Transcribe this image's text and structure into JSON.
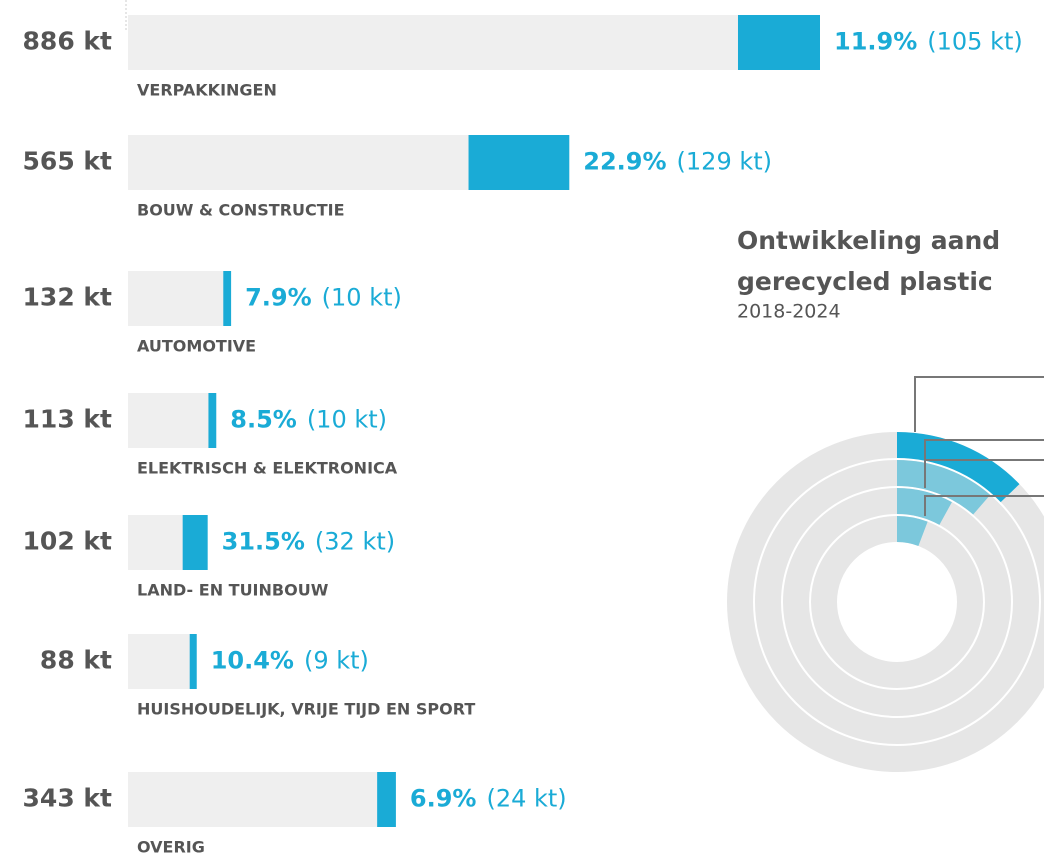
{
  "chart_data": [
    {
      "type": "bar",
      "categories": [
        "VERPAKKINGEN",
        "BOUW & CONSTRUCTIE",
        "AUTOMOTIVE",
        "ELEKTRISCH & ELEKTRONICA",
        "LAND- EN TUINBOUW",
        "HUISHOUDELIJK, VRIJE TIJD EN SPORT",
        "OVERIG"
      ],
      "values": [
        886,
        565,
        132,
        113,
        102,
        88,
        343
      ],
      "value_labels": [
        "886 kt",
        "565 kt",
        "132 kt",
        "113 kt",
        "102 kt",
        "88 kt",
        "343 kt"
      ],
      "recycled": [
        105,
        129,
        10,
        10,
        32,
        9,
        24
      ],
      "recycled_labels": [
        "(105 kt)",
        "(129 kt)",
        "(10 kt)",
        "(10 kt)",
        "(32 kt)",
        "(9 kt)",
        "(24 kt)"
      ],
      "share": [
        11.9,
        22.9,
        7.9,
        8.5,
        31.5,
        10.4,
        6.9
      ],
      "share_labels": [
        "11.9%",
        "22.9%",
        "7.9%",
        "8.5%",
        "31.5%",
        "10.4%",
        "6.9%"
      ],
      "color": "#1aabd6",
      "track_color": "#efefef"
    },
    {
      "type": "radial",
      "title": [
        "Ontwikkeling aand",
        "gerecycled plastic"
      ],
      "subtitle": "2018-2024",
      "values": [
        5.8,
        8,
        11.4,
        12.8
      ],
      "colors": [
        "#7cc8dc",
        "#7cc8dc",
        "#7cc8dc",
        "#1aabd6"
      ],
      "track_color": "#e6e6e6"
    }
  ]
}
